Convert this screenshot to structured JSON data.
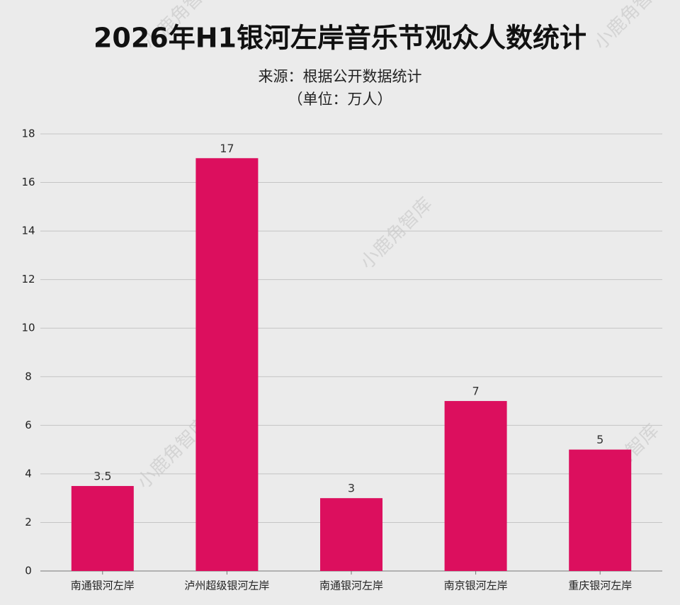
{
  "chart_data": {
    "type": "bar",
    "title": "2026年H1银河左岸音乐节观众人数统计",
    "subtitle": "来源：根据公开数据统计",
    "unit_note": "（单位：万人）",
    "categories": [
      "南通银河左岸",
      "泸州超级银河左岸",
      "南通银河左岸",
      "南京银河左岸",
      "重庆银河左岸"
    ],
    "values": [
      3.5,
      17,
      3,
      7,
      5
    ],
    "color": "#dc0f5e",
    "ylim": [
      0,
      18
    ],
    "yticks": [
      0,
      2,
      4,
      6,
      8,
      10,
      12,
      14,
      16,
      18
    ],
    "grid": true
  },
  "watermark": "小鹿角智库"
}
